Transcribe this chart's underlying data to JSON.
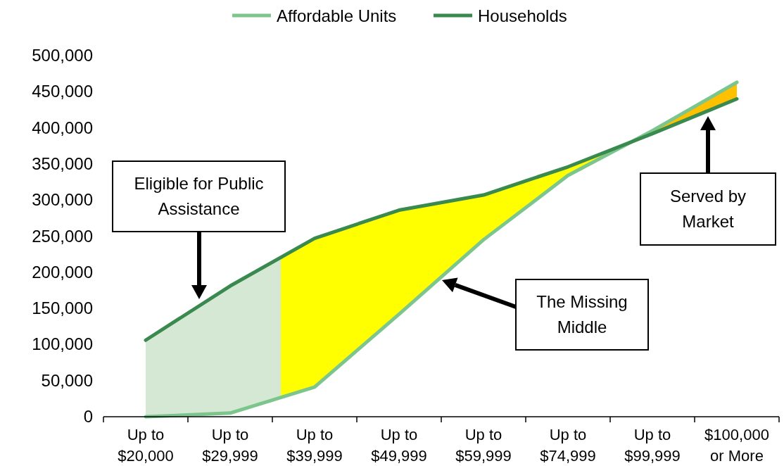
{
  "chart_data": {
    "type": "line",
    "categories": [
      "Up to $20,000",
      "Up to $29,999",
      "Up to $39,999",
      "Up to $49,999",
      "Up to $59,999",
      "Up to $74,999",
      "Up to $99,999",
      "$100,000 or More"
    ],
    "series": [
      {
        "name": "Affordable Units",
        "color": "#7cc68e",
        "values": [
          0,
          5000,
          41000,
          142000,
          245000,
          334000,
          396000,
          463000
        ]
      },
      {
        "name": "Households",
        "color": "#3a8a4f",
        "values": [
          106000,
          181000,
          247000,
          286000,
          307000,
          346000,
          392000,
          440000
        ]
      }
    ],
    "ylim": [
      0,
      500000
    ],
    "yticks": [
      {
        "value": 0,
        "label": "0"
      },
      {
        "value": 50000,
        "label": "50,000"
      },
      {
        "value": 100000,
        "label": "100,000"
      },
      {
        "value": 150000,
        "label": "150,000"
      },
      {
        "value": 200000,
        "label": "200,000"
      },
      {
        "value": 250000,
        "label": "250,000"
      },
      {
        "value": 300000,
        "label": "300,000"
      },
      {
        "value": 350000,
        "label": "350,000"
      },
      {
        "value": 400000,
        "label": "400,000"
      },
      {
        "value": 450000,
        "label": "450,000"
      },
      {
        "value": 500000,
        "label": "500,000"
      }
    ],
    "annotations": [
      "Eligible for Public Assistance",
      "The Missing Middle",
      "Served by Market"
    ],
    "legend": "top",
    "grid": false,
    "marker": "none",
    "line_style": "solid"
  }
}
